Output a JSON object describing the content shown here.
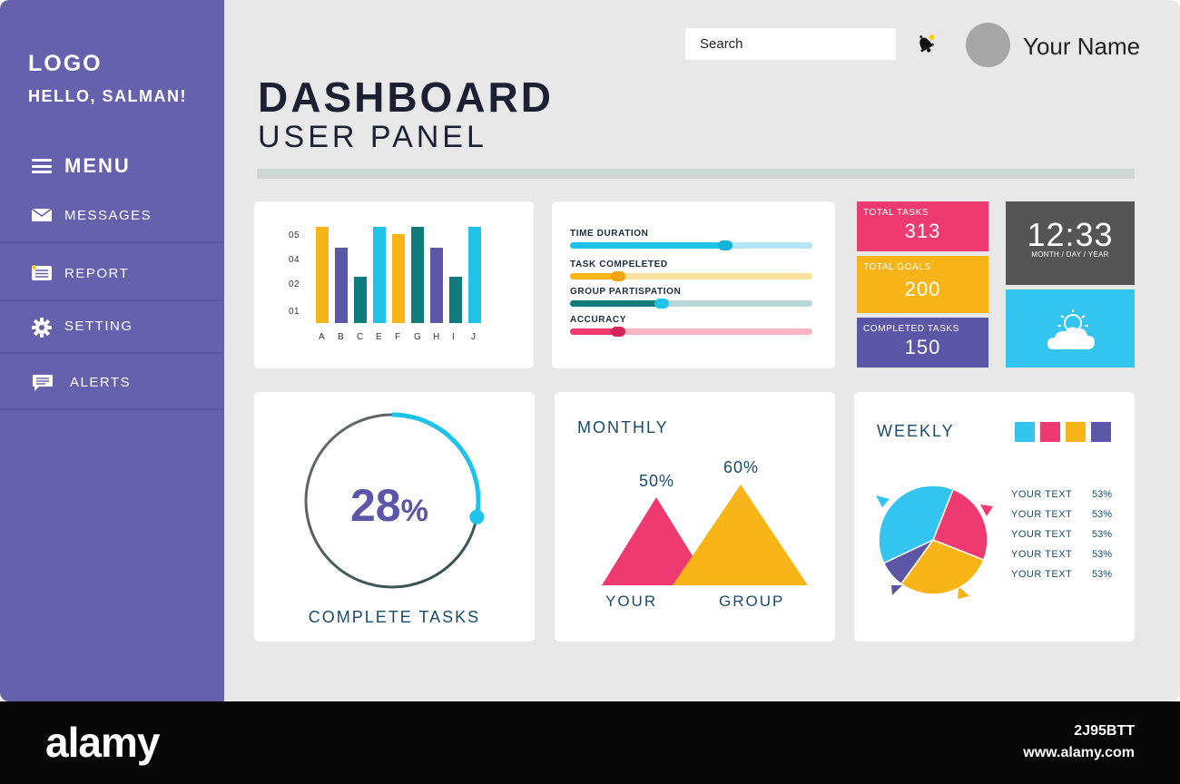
{
  "sidebar": {
    "logo": "LOGO",
    "greeting": "HELLO, SALMAN!",
    "menu_label": "MENU",
    "items": [
      {
        "label": "MESSAGES",
        "icon": "envelope-icon"
      },
      {
        "label": "REPORT",
        "icon": "report-icon"
      },
      {
        "label": "SETTING",
        "icon": "gear-icon"
      },
      {
        "label": "ALERTS",
        "icon": "chat-icon"
      }
    ]
  },
  "header": {
    "title": "DASHBOARD",
    "subtitle": "USER PANEL",
    "search_placeholder": "Search",
    "user_name": "Your Name"
  },
  "colors": {
    "sidebar": "#6661ac",
    "teal": "#117a7a",
    "cyan": "#1fc2e9",
    "pink": "#ee3a70",
    "yellow": "#f9b418",
    "purple": "#5b56a6"
  },
  "chart_data": {
    "type": "bar",
    "categories": [
      "A",
      "B",
      "C",
      "E",
      "F",
      "G",
      "H",
      "I",
      "J"
    ],
    "series": [
      {
        "values": [
          5.0,
          3.9,
          2.4,
          5.0,
          4.6,
          5.0,
          3.9,
          2.4,
          5.0
        ]
      },
      {
        "values": [
          5.0,
          3.9,
          2.4,
          5.0,
          4.6,
          5.0,
          3.9,
          2.4,
          5.0
        ]
      }
    ],
    "bar_colors": [
      "#f9b418",
      "#5b56a6",
      "#117a7a",
      "#1fc2e9",
      "#f9b418",
      "#117a7a",
      "#5b56a6",
      "#117a7a",
      "#1fc2e9"
    ],
    "values": [
      5.0,
      3.9,
      2.4,
      5.0,
      4.6,
      5.0,
      3.9,
      2.4,
      5.0
    ],
    "y_ticks": [
      "05",
      "04",
      "02",
      "01"
    ],
    "ylim": [
      0,
      5
    ],
    "grid": false
  },
  "progress": [
    {
      "label": "TIME DURATION",
      "value": 0.64,
      "track": "#b5e6f5",
      "fill": "#1fc2e9",
      "knob": "#17b3d8"
    },
    {
      "label": "TASK COMPELETED",
      "value": 0.2,
      "track": "#fbe0a0",
      "fill": "#f9b418",
      "knob": "#f2a50a"
    },
    {
      "label": "GROUP PARTISPATION",
      "value": 0.38,
      "track": "#b9d7d6",
      "fill": "#117a7a",
      "knob": "#1fc2e9"
    },
    {
      "label": "ACCURACY",
      "value": 0.2,
      "track": "#f9b5c6",
      "fill": "#ee3a70",
      "knob": "#d8245a"
    }
  ],
  "stats": [
    {
      "label": "TOTAL TASKS",
      "value": "313",
      "color": "#ee3a70"
    },
    {
      "label": "TOTAL GOALS",
      "value": "200",
      "color": "#f9b418"
    },
    {
      "label": "COMPLETED TASKS",
      "value": "150",
      "color": "#5b56a6"
    }
  ],
  "clock": {
    "time": "12:33",
    "sub": "MONTH / DAY / YEAR"
  },
  "weather_icon": "sun-cloud-icon",
  "complete": {
    "value": 0.28,
    "pct_number": "28",
    "pct_sign": "%",
    "caption": "COMPLETE TASKS"
  },
  "monthly": {
    "title": "MONTHLY",
    "items": [
      {
        "label": "YOUR",
        "value": "50%",
        "color": "#ee3a70"
      },
      {
        "label": "GROUP",
        "value": "60%",
        "color": "#f9b418"
      }
    ]
  },
  "weekly": {
    "title": "WEEKLY",
    "legend_colors": [
      "#33c4f0",
      "#ee3a70",
      "#f9b418",
      "#5b56a6"
    ],
    "slices": [
      {
        "color": "#ee3a70",
        "fraction": 0.25
      },
      {
        "color": "#f9b418",
        "fraction": 0.29
      },
      {
        "color": "#5b56a6",
        "fraction": 0.08
      },
      {
        "color": "#33c4f0",
        "fraction": 0.38
      }
    ],
    "rows": [
      {
        "label": "YOUR TEXT",
        "value": "53%"
      },
      {
        "label": "YOUR TEXT",
        "value": "53%"
      },
      {
        "label": "YOUR TEXT",
        "value": "53%"
      },
      {
        "label": "YOUR TEXT",
        "value": "53%"
      },
      {
        "label": "YOUR TEXT",
        "value": "53%"
      }
    ]
  },
  "watermark": {
    "brand": "alamy",
    "image_id": "2J95BTT",
    "site": "www.alamy.com"
  }
}
